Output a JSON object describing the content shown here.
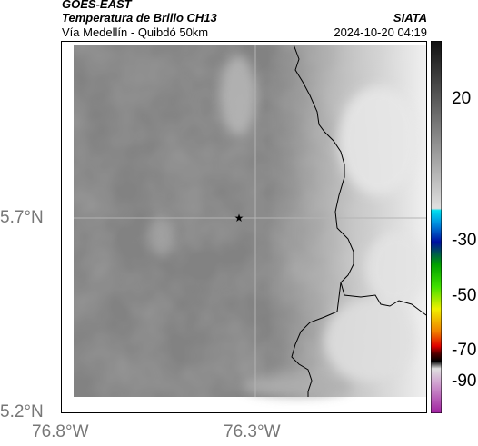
{
  "header": {
    "satellite": "GOES-EAST",
    "product": "Temperatura de Brillo CH13",
    "region": "Vía Medellín - Quibdó 50km",
    "source": "SIATA",
    "datetime": "2024-10-20 04:19"
  },
  "map": {
    "lat_labels": [
      "5.7°N",
      "5.2°N"
    ],
    "lon_labels": [
      "76.8°W",
      "76.3°W"
    ],
    "marker": "star-icon"
  },
  "colorbar": {
    "ticks": [
      "20",
      "-30",
      "-50",
      "-70",
      "-90"
    ],
    "colors": {
      "warm_gray_top": "#222222",
      "warm_gray_bottom": "#dddddd",
      "cyan": "#00c8e0",
      "blue": "#0010a0",
      "green": "#00c000",
      "yellow": "#f0f000",
      "red": "#e00000",
      "black": "#000000",
      "magenta": "#c040c0"
    }
  },
  "colors": {
    "land_gray": "#808080",
    "cloud_gray": "#e6e6e6",
    "coastline": "#000000"
  }
}
